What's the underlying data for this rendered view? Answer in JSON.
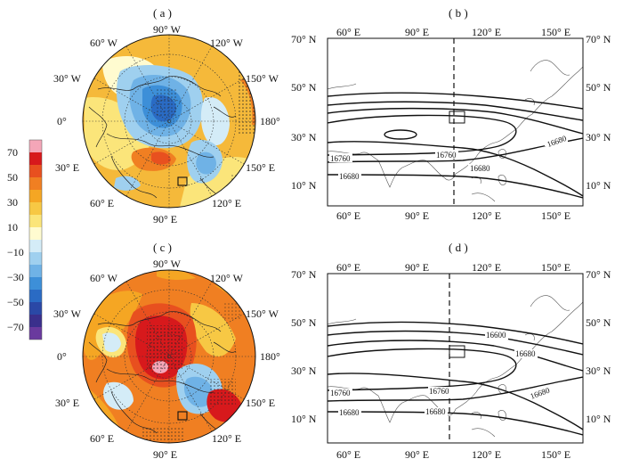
{
  "panels": {
    "a": {
      "label": "( a )"
    },
    "b": {
      "label": "( b )"
    },
    "c": {
      "label": "( c )"
    },
    "d": {
      "label": "( d )"
    }
  },
  "polar_labels": {
    "lon_90W": "90° W",
    "lon_60W": "60° W",
    "lon_120W": "120° W",
    "lon_30W": "30° W",
    "lon_150W": "150° W",
    "lon_0": "0°",
    "lon_180": "180°",
    "lon_30E": "30° E",
    "lon_150E": "150° E",
    "lon_60E": "60° E",
    "lon_120E": "120° E",
    "lon_90E": "90° E"
  },
  "map_axes": {
    "x_ticks": [
      "60° E",
      "90° E",
      "120° E",
      "150° E"
    ],
    "y_ticks": [
      "10° N",
      "30° N",
      "50° N",
      "70° N"
    ]
  },
  "contour_labels_b": {
    "c1": "16760",
    "c2": "16680",
    "c3": "16760",
    "c4": "16680",
    "c5": "16680"
  },
  "contour_labels_d": {
    "c1": "16600",
    "c2": "16680",
    "c3": "16760",
    "c4": "16760",
    "c5": "16680",
    "c6": "16680",
    "c7": "16680"
  },
  "colorbar": {
    "levels": [
      "70",
      "50",
      "30",
      "10",
      "−10",
      "−30",
      "−50",
      "−70"
    ],
    "colors": [
      "#f4a6b8",
      "#d7191c",
      "#e8501f",
      "#f07f22",
      "#f5a623",
      "#f7c844",
      "#fbe57a",
      "#fffbd0",
      "#d4ecf7",
      "#9fd0ef",
      "#6fb2e6",
      "#3d8fd8",
      "#2a6bc4",
      "#2a48a6",
      "#3a2f8c",
      "#6a3a9e"
    ]
  }
}
